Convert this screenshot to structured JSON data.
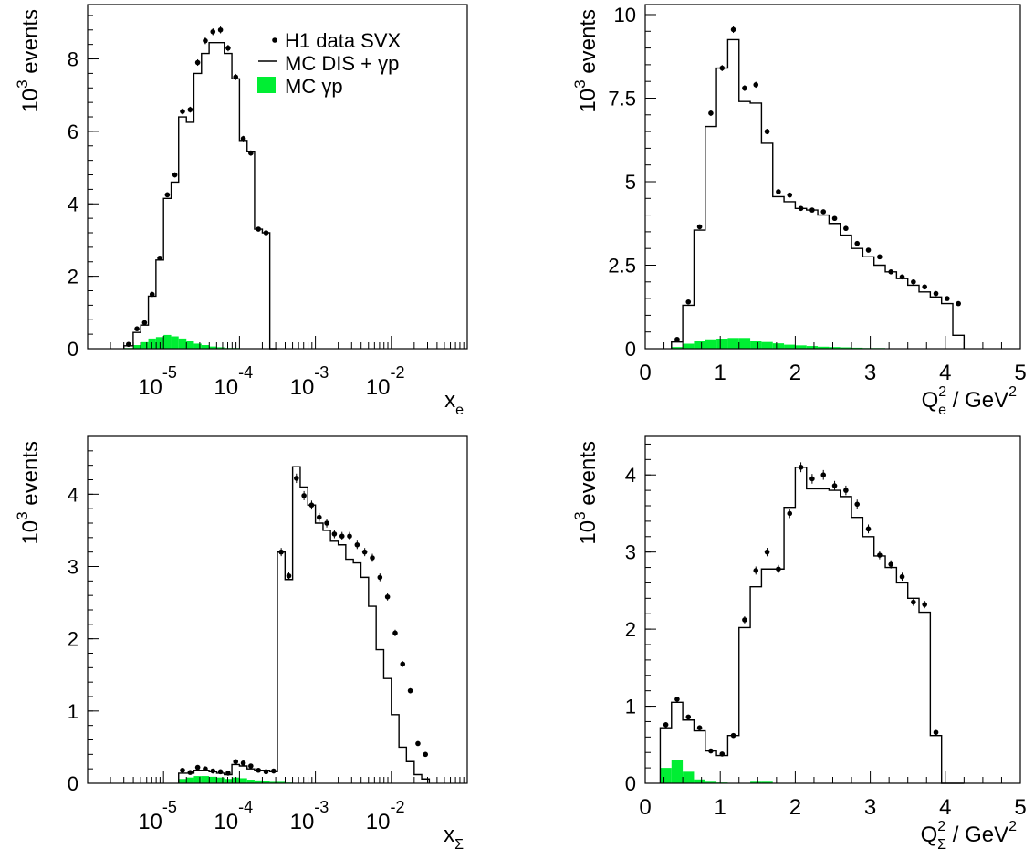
{
  "colors": {
    "mc_gp_fill": "#00ee33",
    "line": "#000000",
    "background": "#ffffff"
  },
  "legend": {
    "data_label": "H1 data SVX",
    "mc_total_label": "MC DIS + γp",
    "mc_gp_label": "MC γp"
  },
  "chart_data": [
    {
      "id": "x_e",
      "type": "bar",
      "xscale": "log",
      "xlim": [
        1e-06,
        0.1
      ],
      "ylim": [
        0,
        9.5
      ],
      "yticks": [
        0,
        2,
        4,
        6,
        8
      ],
      "xticks": [
        {
          "value": 1e-05,
          "label": "10",
          "exp": "-5"
        },
        {
          "value": 0.0001,
          "label": "10",
          "exp": "-4"
        },
        {
          "value": 0.001,
          "label": "10",
          "exp": "-3"
        },
        {
          "value": 0.01,
          "label": "10",
          "exp": "-2"
        }
      ],
      "ylabel": "events",
      "ylabel_prefix": "10",
      "ylabel_exp": "3",
      "xlabel": "x",
      "xlabel_sub": "e",
      "legend_position": "top-right",
      "bin_edges": [
        3e-06,
        3.98e-06,
        5.01e-06,
        6.31e-06,
        7.94e-06,
        1e-05,
        1.26e-05,
        1.58e-05,
        2e-05,
        2.51e-05,
        3.16e-05,
        3.98e-05,
        5.01e-05,
        6.31e-05,
        7.94e-05,
        0.0001,
        0.000126,
        0.000158,
        0.0002,
        0.000251,
        0.000316
      ],
      "series": [
        {
          "name": "MC DIS + γp",
          "values": [
            0.08,
            0.45,
            0.65,
            1.45,
            2.45,
            4.15,
            4.6,
            6.4,
            6.25,
            7.6,
            8.15,
            8.45,
            8.45,
            8.15,
            7.45,
            5.75,
            5.45,
            3.3,
            3.2,
            0
          ]
        },
        {
          "name": "MC γp",
          "values": [
            0.02,
            0.1,
            0.18,
            0.28,
            0.32,
            0.38,
            0.34,
            0.28,
            0.22,
            0.14,
            0.1,
            0.06,
            0.04,
            0.02,
            0.02,
            0.01,
            0.01,
            0,
            0,
            0
          ]
        },
        {
          "name": "H1 data SVX",
          "values": [
            0.12,
            0.55,
            0.72,
            1.5,
            2.5,
            4.25,
            4.8,
            6.55,
            6.6,
            7.9,
            8.5,
            8.75,
            8.8,
            8.3,
            7.5,
            5.8,
            5.4,
            3.3,
            3.2,
            null
          ]
        }
      ]
    },
    {
      "id": "Q2_e",
      "type": "bar",
      "xscale": "linear",
      "xlim": [
        0,
        5
      ],
      "ylim": [
        0,
        10.3
      ],
      "yticks": [
        0,
        2.5,
        5,
        7.5,
        10
      ],
      "ytick_labels": [
        "0",
        "2.5",
        "5",
        "7.5",
        "10"
      ],
      "xticks": [
        0,
        1,
        2,
        3,
        4,
        5
      ],
      "ylabel": "events",
      "ylabel_prefix": "10",
      "ylabel_exp": "3",
      "xlabel": "Q",
      "xlabel_sup": "2",
      "xlabel_sub": "e",
      "xlabel_unit": " / GeV",
      "xlabel_unit_sup": "2",
      "bin_edges": [
        0.35,
        0.5,
        0.65,
        0.8,
        0.95,
        1.1,
        1.25,
        1.4,
        1.55,
        1.7,
        1.85,
        2.0,
        2.15,
        2.3,
        2.45,
        2.6,
        2.75,
        2.9,
        3.05,
        3.2,
        3.35,
        3.5,
        3.65,
        3.8,
        3.95,
        4.1,
        4.25
      ],
      "series": [
        {
          "name": "MC DIS + γp",
          "values": [
            0.2,
            1.3,
            3.55,
            6.65,
            8.4,
            9.25,
            7.4,
            7.35,
            6.15,
            4.55,
            4.4,
            4.2,
            4.15,
            4.0,
            3.75,
            3.4,
            3.0,
            2.75,
            2.5,
            2.3,
            2.1,
            1.9,
            1.7,
            1.55,
            1.35,
            0.4
          ]
        },
        {
          "name": "MC γp",
          "values": [
            0.05,
            0.15,
            0.22,
            0.28,
            0.3,
            0.32,
            0.32,
            0.24,
            0.2,
            0.16,
            0.12,
            0.1,
            0.08,
            0.06,
            0.05,
            0.04,
            0.03,
            0.02,
            0.02,
            0.01,
            0.01,
            0.01,
            0,
            0,
            0,
            0
          ]
        },
        {
          "name": "H1 data SVX",
          "values": [
            0.28,
            1.4,
            3.65,
            7.05,
            8.4,
            9.55,
            7.8,
            7.9,
            6.5,
            4.7,
            4.6,
            4.2,
            4.15,
            4.1,
            3.9,
            3.6,
            3.15,
            2.95,
            2.75,
            2.3,
            2.15,
            2.0,
            1.85,
            1.65,
            1.5,
            1.35
          ]
        }
      ]
    },
    {
      "id": "x_sigma",
      "type": "bar",
      "xscale": "log",
      "xlim": [
        1e-06,
        0.1
      ],
      "ylim": [
        0,
        4.8
      ],
      "yticks": [
        0,
        1,
        2,
        3,
        4
      ],
      "xticks": [
        {
          "value": 1e-05,
          "label": "10",
          "exp": "-5"
        },
        {
          "value": 0.0001,
          "label": "10",
          "exp": "-4"
        },
        {
          "value": 0.001,
          "label": "10",
          "exp": "-3"
        },
        {
          "value": 0.01,
          "label": "10",
          "exp": "-2"
        }
      ],
      "ylabel": "events",
      "ylabel_prefix": "10",
      "ylabel_exp": "3",
      "xlabel": "x",
      "xlabel_sub": "Σ",
      "bin_edges": [
        1.58e-05,
        2e-05,
        2.51e-05,
        3.16e-05,
        3.98e-05,
        5.01e-05,
        6.31e-05,
        7.94e-05,
        0.0001,
        0.000126,
        0.000158,
        0.0002,
        0.000251,
        0.000316,
        0.000398,
        0.000501,
        0.000631,
        0.000794,
        0.001,
        0.00126,
        0.00158,
        0.002,
        0.00251,
        0.00316,
        0.00398,
        0.00501,
        0.00631,
        0.00794,
        0.01,
        0.0126,
        0.0158,
        0.02,
        0.0251,
        0.0316
      ],
      "series": [
        {
          "name": "MC DIS + γp",
          "values": [
            0.14,
            0.14,
            0.18,
            0.18,
            0.16,
            0.14,
            0.12,
            0.26,
            0.24,
            0.2,
            0.18,
            0.18,
            0.16,
            3.2,
            2.82,
            4.38,
            4.1,
            3.85,
            3.6,
            3.5,
            3.35,
            3.3,
            3.1,
            3.05,
            2.85,
            2.45,
            1.85,
            1.45,
            0.95,
            0.5,
            0.3,
            0.12,
            0.06
          ]
        },
        {
          "name": "MC γp",
          "values": [
            0.06,
            0.08,
            0.1,
            0.1,
            0.09,
            0.08,
            0.06,
            0.08,
            0.07,
            0.05,
            0.04,
            0.03,
            0.02,
            0.02,
            0.01,
            0,
            0,
            0,
            0,
            0,
            0,
            0,
            0,
            0,
            0,
            0,
            0,
            0,
            0,
            0,
            0,
            0,
            0
          ]
        },
        {
          "name": "H1 data SVX",
          "values": [
            0.18,
            0.15,
            0.22,
            0.2,
            0.17,
            0.16,
            0.14,
            0.3,
            0.28,
            0.24,
            0.18,
            0.16,
            0.17,
            3.2,
            2.87,
            4.22,
            3.98,
            3.85,
            3.68,
            3.6,
            3.45,
            3.42,
            3.42,
            3.3,
            3.2,
            3.12,
            2.85,
            2.58,
            2.08,
            1.65,
            1.28,
            0.55,
            0.4
          ]
        }
      ]
    },
    {
      "id": "Q2_sigma",
      "type": "bar",
      "xscale": "linear",
      "xlim": [
        0,
        5
      ],
      "ylim": [
        0,
        4.5
      ],
      "yticks": [
        0,
        1,
        2,
        3,
        4
      ],
      "xticks": [
        0,
        1,
        2,
        3,
        4,
        5
      ],
      "ylabel": "events",
      "ylabel_prefix": "10",
      "ylabel_exp": "3",
      "xlabel": "Q",
      "xlabel_sup": "2",
      "xlabel_sub": "Σ",
      "xlabel_unit": " / GeV",
      "xlabel_unit_sup": "2",
      "bin_edges": [
        0.2,
        0.35,
        0.5,
        0.65,
        0.8,
        0.95,
        1.1,
        1.25,
        1.4,
        1.55,
        1.7,
        1.85,
        2.0,
        2.15,
        2.3,
        2.45,
        2.6,
        2.75,
        2.9,
        3.05,
        3.2,
        3.35,
        3.5,
        3.65,
        3.8,
        3.95,
        4.1,
        4.25
      ],
      "series": [
        {
          "name": "MC DIS + γp",
          "values": [
            0.72,
            1.05,
            0.82,
            0.68,
            0.42,
            0.36,
            0.62,
            2.02,
            2.55,
            2.78,
            2.78,
            3.58,
            4.1,
            3.82,
            3.82,
            3.8,
            3.72,
            3.45,
            3.2,
            2.95,
            2.8,
            2.6,
            2.4,
            2.22,
            0.62,
            0,
            0
          ]
        },
        {
          "name": "MC γp",
          "values": [
            0.2,
            0.3,
            0.15,
            0.05,
            0.02,
            0.01,
            0,
            0,
            0.02,
            0.02,
            0,
            0,
            0,
            0,
            0,
            0,
            0,
            0,
            0,
            0,
            0,
            0,
            0,
            0,
            0,
            0,
            0
          ]
        },
        {
          "name": "H1 data SVX",
          "values": [
            0.76,
            1.09,
            0.86,
            0.72,
            0.42,
            0.38,
            0.62,
            2.12,
            2.76,
            3.0,
            2.78,
            3.5,
            4.1,
            3.95,
            4.0,
            3.86,
            3.8,
            3.62,
            3.3,
            2.96,
            2.84,
            2.68,
            2.35,
            2.32,
            0.66,
            null,
            null
          ]
        }
      ]
    }
  ]
}
